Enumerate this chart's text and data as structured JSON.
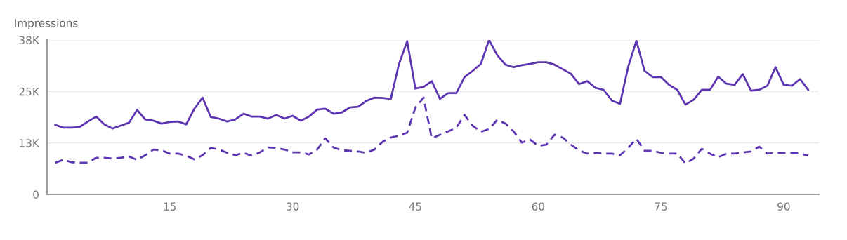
{
  "chart_data": {
    "type": "line",
    "ylabel": "Impressions",
    "x": [
      1,
      2,
      3,
      4,
      5,
      6,
      7,
      8,
      9,
      10,
      11,
      12,
      13,
      14,
      15,
      16,
      17,
      18,
      19,
      20,
      21,
      22,
      23,
      24,
      25,
      26,
      27,
      28,
      29,
      30,
      31,
      32,
      33,
      34,
      35,
      36,
      37,
      38,
      39,
      40,
      41,
      42,
      43,
      44,
      45,
      46,
      47,
      48,
      49,
      50,
      51,
      52,
      53,
      54,
      55,
      56,
      57,
      58,
      59,
      60,
      61,
      62,
      63,
      64,
      65,
      66,
      67,
      68,
      69,
      70,
      71,
      72,
      73,
      74,
      75,
      76,
      77,
      78,
      79,
      80,
      81,
      82,
      83,
      84,
      85,
      86,
      87,
      88,
      89,
      90,
      91,
      92,
      93
    ],
    "series": [
      {
        "color": "#5e35b1",
        "line_style": "solid",
        "values": [
          16900,
          16200,
          16200,
          16400,
          17700,
          18900,
          17000,
          16000,
          16700,
          17400,
          20500,
          18200,
          17900,
          17200,
          17600,
          17700,
          17000,
          20800,
          23500,
          18800,
          18400,
          17700,
          18200,
          19600,
          18900,
          18900,
          18400,
          19300,
          18400,
          19100,
          17900,
          18900,
          20600,
          20800,
          19600,
          19900,
          21100,
          21300,
          22700,
          23500,
          23400,
          23200,
          31700,
          37200,
          25700,
          26100,
          27500,
          23200,
          24600,
          24600,
          28500,
          30000,
          31700,
          37500,
          33800,
          31500,
          30900,
          31400,
          31700,
          32100,
          32100,
          31500,
          30400,
          29300,
          26800,
          27500,
          25900,
          25400,
          22800,
          22000,
          31000,
          37300,
          30000,
          28500,
          28500,
          26600,
          25400,
          21800,
          23000,
          25400,
          25400,
          28600,
          26900,
          26600,
          29200,
          25200,
          25400,
          26400,
          30900,
          26600,
          26400,
          28000,
          25400
        ]
      },
      {
        "color": "#5e35b1",
        "line_style": "dashed",
        "values": [
          7700,
          8400,
          7800,
          7700,
          7700,
          8900,
          8900,
          8700,
          8900,
          9200,
          8400,
          9500,
          10900,
          10700,
          9900,
          9900,
          9400,
          8500,
          9500,
          11300,
          10900,
          10100,
          9500,
          10100,
          9400,
          10200,
          11400,
          11300,
          10900,
          10200,
          10200,
          9700,
          10900,
          13600,
          11400,
          10700,
          10600,
          10400,
          10100,
          10900,
          12800,
          13800,
          14300,
          15000,
          21100,
          23500,
          13600,
          14500,
          15300,
          16200,
          19300,
          16700,
          15200,
          15900,
          18100,
          17200,
          15300,
          12600,
          13300,
          11800,
          12100,
          14500,
          13800,
          12100,
          10700,
          9900,
          10100,
          9900,
          9900,
          9500,
          11300,
          13500,
          10600,
          10600,
          10100,
          9900,
          9900,
          7500,
          8700,
          11100,
          9900,
          9000,
          9900,
          9900,
          10200,
          10400,
          11600,
          9900,
          10100,
          10100,
          10100,
          9900,
          9400
        ]
      }
    ],
    "xlim": [
      0,
      94.3
    ],
    "xticks": [
      15,
      30,
      45,
      60,
      75,
      90
    ],
    "ylim": [
      0,
      37500
    ],
    "yticks": [
      0,
      {
        "value": 12500,
        "label": "13K"
      },
      {
        "value": 25000,
        "label": "25K"
      },
      {
        "value": 37500,
        "label": "38K"
      }
    ],
    "grid": "y"
  }
}
